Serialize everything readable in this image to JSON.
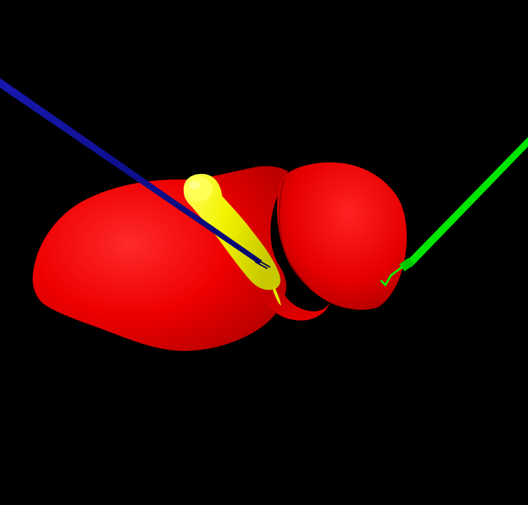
{
  "scene": {
    "background_color": "#000000",
    "objects": [
      {
        "name": "liver-model",
        "color": "#ff0000"
      },
      {
        "name": "gallbladder-model",
        "color": "#ffff00"
      },
      {
        "name": "needle-instrument-blue",
        "color": "#0a0a96"
      },
      {
        "name": "hook-instrument-green",
        "color": "#00e600"
      }
    ]
  }
}
